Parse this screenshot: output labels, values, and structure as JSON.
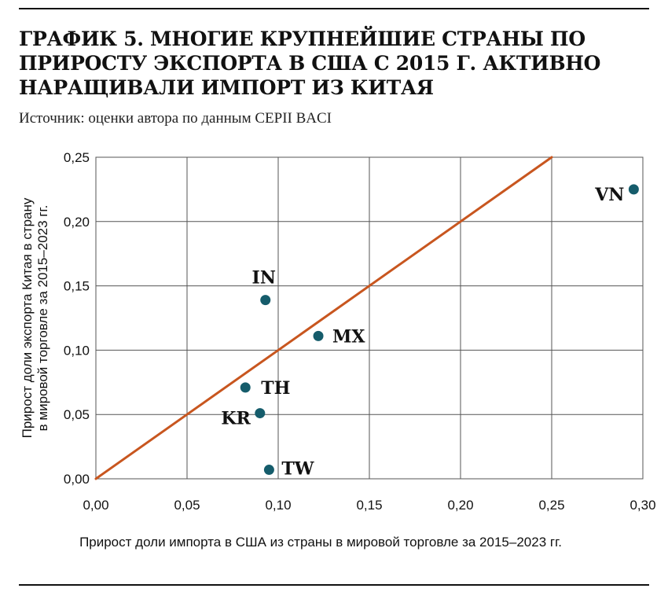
{
  "title": "ГРАФИК 5. МНОГИЕ КРУПНЕЙШИЕ СТРАНЫ ПО ПРИРОСТУ ЭКСПОРТА В США С 2015 Г. АКТИВНО НАРАЩИВАЛИ ИМПОРТ ИЗ КИТАЯ",
  "source": "Источник: оценки автора по данным CEPII BACI",
  "colors": {
    "point": "#155c6b",
    "line": "#c8561f",
    "grid": "#555555"
  },
  "chart_data": {
    "type": "scatter",
    "xlabel": "Прирост доли импорта в США из страны в мировой торговле за 2015–2023 гг.",
    "ylabel": [
      "Прирост доли экспорта Китая в страну",
      "в мировой торговле за 2015–2023 гг."
    ],
    "xlim": [
      0,
      0.3
    ],
    "ylim": [
      0,
      0.25
    ],
    "x_ticks": [
      "0,00",
      "0,05",
      "0,10",
      "0,15",
      "0,20",
      "0,25",
      "0,30"
    ],
    "y_ticks": [
      "0,00",
      "0,05",
      "0,10",
      "0,15",
      "0,20",
      "0,25"
    ],
    "grid": true,
    "reference_line": {
      "from": [
        0,
        0
      ],
      "to": [
        0.25,
        0.25
      ]
    },
    "points": [
      {
        "label": "VN",
        "x": 0.295,
        "y": 0.225
      },
      {
        "label": "IN",
        "x": 0.093,
        "y": 0.139
      },
      {
        "label": "MX",
        "x": 0.122,
        "y": 0.111
      },
      {
        "label": "TH",
        "x": 0.082,
        "y": 0.071
      },
      {
        "label": "KR",
        "x": 0.09,
        "y": 0.051
      },
      {
        "label": "TW",
        "x": 0.095,
        "y": 0.007
      }
    ]
  }
}
